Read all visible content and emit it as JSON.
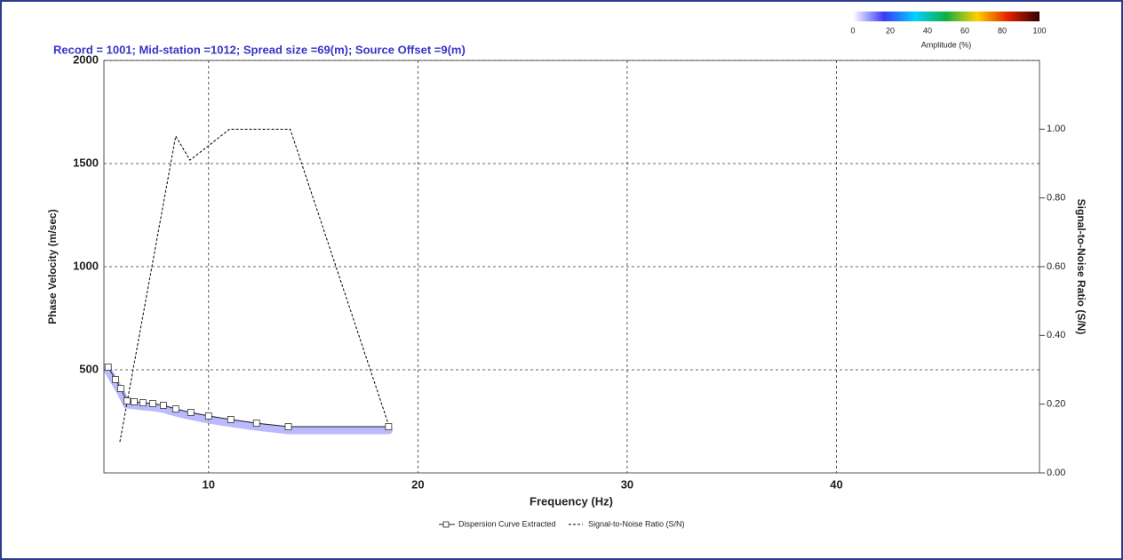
{
  "chart_data": {
    "type": "dispersion",
    "title": "Record = 1001; Mid-station =1012; Spread size =69(m); Source Offset =9(m)",
    "x_label": "Frequency (Hz)",
    "y_label": "Phase Velocity (m/sec)",
    "y2_label": "Signal-to-Noise Ratio (S/N)",
    "xlim": [
      5,
      49.7
    ],
    "xticks": [
      10,
      20,
      30,
      40
    ],
    "ylim": [
      0,
      2000
    ],
    "yticks": [
      500,
      1000,
      1500,
      2000
    ],
    "y2lim": [
      0,
      1.2
    ],
    "y2ticks": [
      {
        "value": 0,
        "label": "0.00"
      },
      {
        "value": 0.2,
        "label": "0.20"
      },
      {
        "value": 0.4,
        "label": "0.40"
      },
      {
        "value": 0.6,
        "label": "0.60"
      },
      {
        "value": 0.8,
        "label": "0.80"
      },
      {
        "value": 1,
        "label": "1.00"
      }
    ],
    "grid": true,
    "colorbar": {
      "label": "Amplitude (%)",
      "ticks": [
        0,
        20,
        40,
        60,
        80,
        100
      ],
      "colors": [
        "#ffffff",
        "#3a3af5",
        "#00d0ff",
        "#10b040",
        "#ffd000",
        "#e02000",
        "#300000"
      ]
    },
    "series": [
      {
        "name": "Dispersion Curve Extracted",
        "color": "#ffffff",
        "x": [
          5.2,
          5.55,
          5.8,
          6.1,
          6.44,
          6.86,
          7.33,
          7.84,
          8.43,
          9.15,
          10,
          11.06,
          12.29,
          13.81,
          18.6
        ],
        "values": [
          513,
          453,
          409,
          349,
          345,
          340,
          336,
          328,
          310,
          293,
          276,
          259,
          241,
          224,
          224
        ]
      },
      {
        "name": "Signal-to-Noise Ratio (S/N)",
        "color": "#000000",
        "axis": "y2",
        "x": [
          5.76,
          8.43,
          9.11,
          9.96,
          11,
          13.9,
          18.6
        ],
        "values": [
          0.09,
          0.98,
          0.91,
          0.95,
          1,
          1,
          0.14
        ]
      }
    ]
  }
}
